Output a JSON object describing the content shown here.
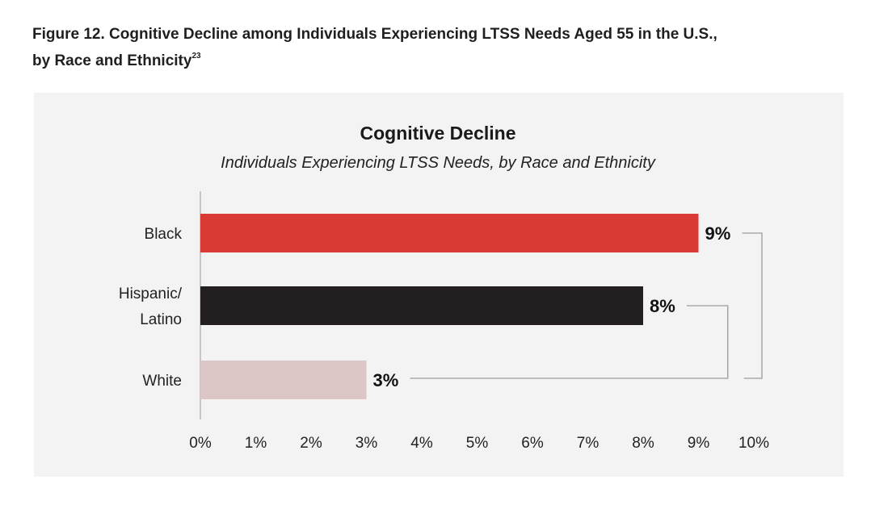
{
  "figure": {
    "caption_line1": "Figure 12. Cognitive Decline among Individuals Experiencing LTSS Needs Aged 55 in the U.S.,",
    "caption_line2": "by Race and Ethnicity",
    "footnote": "23"
  },
  "chart_data": {
    "type": "bar",
    "orientation": "horizontal",
    "title": "Cognitive Decline",
    "subtitle": "Individuals Experiencing LTSS Needs, by Race and Ethnicity",
    "categories": [
      [
        "Black"
      ],
      [
        "Hispanic/",
        "Latino"
      ],
      [
        "White"
      ]
    ],
    "values": [
      9,
      8,
      3
    ],
    "value_labels": [
      "9%",
      "8%",
      "3%"
    ],
    "colors": [
      "#d93a34",
      "#231f20",
      "#dcc6c6"
    ],
    "xlim": [
      0,
      10
    ],
    "xticks": [
      "0%",
      "1%",
      "2%",
      "3%",
      "4%",
      "5%",
      "6%",
      "7%",
      "8%",
      "9%",
      "10%"
    ],
    "grid": false,
    "legend": "none"
  }
}
